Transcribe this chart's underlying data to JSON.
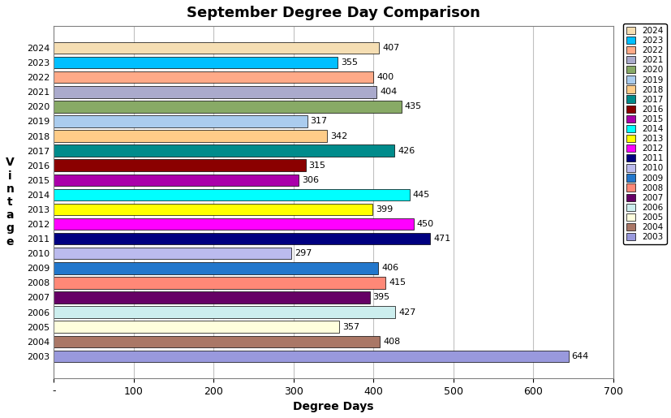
{
  "title": "September Degree Day Comparison",
  "xlabel": "Degree Days",
  "ylabel": "V\ni\nn\nt\na\ng\ne",
  "years": [
    "2024",
    "2023",
    "2022",
    "2021",
    "2020",
    "2019",
    "2018",
    "2017",
    "2016",
    "2015",
    "2014",
    "2013",
    "2012",
    "2011",
    "2010",
    "2009",
    "2008",
    "2007",
    "2006",
    "2005",
    "2004",
    "2003"
  ],
  "values": [
    407,
    355,
    400,
    404,
    435,
    317,
    342,
    426,
    315,
    306,
    445,
    399,
    450,
    471,
    297,
    406,
    415,
    395,
    427,
    357,
    408,
    644
  ],
  "colors": [
    "#F5DEB3",
    "#00BFFF",
    "#FFAA88",
    "#AAAACC",
    "#88AA66",
    "#AACCEE",
    "#FFCC88",
    "#008B8B",
    "#8B0000",
    "#AA00AA",
    "#00FFFF",
    "#FFFF00",
    "#FF00FF",
    "#000080",
    "#BBBBEE",
    "#2277CC",
    "#FF8877",
    "#660066",
    "#CCEEEE",
    "#FFFFDD",
    "#AA7766",
    "#9999DD"
  ],
  "xlim": [
    0,
    700
  ],
  "xticks": [
    0,
    100,
    200,
    300,
    400,
    500,
    600,
    700
  ],
  "xticklabels": [
    "-",
    "100",
    "200",
    "300",
    "400",
    "500",
    "600",
    "700"
  ],
  "background_color": "#FFFFFF",
  "plot_background": "#FFFFFF",
  "grid_color": "#C0C0C0"
}
